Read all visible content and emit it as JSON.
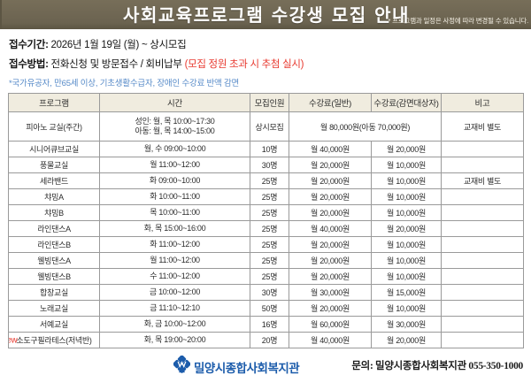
{
  "banner": {
    "title": "사회교육프로그램 수강생 모집 안내",
    "note": "* 프로그램과 일정은 사정에 따라 변경될 수 있습니다."
  },
  "info": {
    "period_label": "접수기간:",
    "period_value": " 2026년 1월 19일 (월) ~ 상시모집",
    "method_label": "접수방법:",
    "method_value": " 전화신청 및 방문접수 / 회비납부 ",
    "method_warning": "(모집 정원 초과 시 추첨 실시)",
    "discount_note": "*국가유공자, 만65세 이상, 기초생활수급자, 장애인 수강료 반액 감면"
  },
  "table": {
    "headers": [
      "프로그램",
      "시간",
      "모집인원",
      "수강료(일반)",
      "수강료(감면대상자)",
      "비고"
    ],
    "rows": [
      {
        "program": "피아노 교실(주간)",
        "time": [
          "성인: 월, 목 10:00~17:30",
          "아동: 월, 목 14:00~15:00"
        ],
        "capacity": "상시모집",
        "fee_combined": "월 80,000원(아동 70,000원)",
        "note": "교재비 별도",
        "tall": true
      },
      {
        "program": "시니어큐브교실",
        "time": [
          "월, 수 09:00~10:00"
        ],
        "capacity": "10명",
        "fee_general": "월 40,000원",
        "fee_discount": "월 20,000원",
        "note": ""
      },
      {
        "program": "풍물교실",
        "time": [
          "월 11:00~12:00"
        ],
        "capacity": "30명",
        "fee_general": "월 20,000원",
        "fee_discount": "월 10,000원",
        "note": ""
      },
      {
        "program": "세라밴드",
        "time": [
          "화 09:00~10:00"
        ],
        "capacity": "25명",
        "fee_general": "월 20,000원",
        "fee_discount": "월 10,000원",
        "note": "교재비 별도"
      },
      {
        "program": "챠밍A",
        "time": [
          "화 10:00~11:00"
        ],
        "capacity": "25명",
        "fee_general": "월 20,000원",
        "fee_discount": "월 10,000원",
        "note": ""
      },
      {
        "program": "챠밍B",
        "time": [
          "목 10:00~11:00"
        ],
        "capacity": "25명",
        "fee_general": "월 20,000원",
        "fee_discount": "월 10,000원",
        "note": ""
      },
      {
        "program": "라인댄스A",
        "time": [
          "화, 목 15:00~16:00"
        ],
        "capacity": "25명",
        "fee_general": "월 40,000원",
        "fee_discount": "월 20,000원",
        "note": ""
      },
      {
        "program": "라인댄스B",
        "time": [
          "화 11:00~12:00"
        ],
        "capacity": "25명",
        "fee_general": "월 20,000원",
        "fee_discount": "월 10,000원",
        "note": ""
      },
      {
        "program": "웰빙댄스A",
        "time": [
          "월 11:00~12:00"
        ],
        "capacity": "25명",
        "fee_general": "월 20,000원",
        "fee_discount": "월 10,000원",
        "note": ""
      },
      {
        "program": "웰빙댄스B",
        "time": [
          "수 11:00~12:00"
        ],
        "capacity": "25명",
        "fee_general": "월 20,000원",
        "fee_discount": "월 10,000원",
        "note": ""
      },
      {
        "program": "합창교실",
        "time": [
          "금 10:00~12:00"
        ],
        "capacity": "30명",
        "fee_general": "월 30,000원",
        "fee_discount": "월 15,000원",
        "note": ""
      },
      {
        "program": "노래교실",
        "time": [
          "금 11:10~12:10"
        ],
        "capacity": "50명",
        "fee_general": "월 20,000원",
        "fee_discount": "월 10,000원",
        "note": ""
      },
      {
        "program": "서예교실",
        "time": [
          "화, 금 10:00~12:00"
        ],
        "capacity": "16명",
        "fee_general": "월 60,000원",
        "fee_discount": "월 30,000원",
        "note": ""
      },
      {
        "program": "소도구필라테스(저녁반)",
        "time": [
          "화, 목 19:00~20:00"
        ],
        "capacity": "20명",
        "fee_general": "월 40,000원",
        "fee_discount": "월 20,000원",
        "note": "",
        "badge": "new"
      }
    ]
  },
  "footer": {
    "org_name": "밀양시종합사회복지관",
    "contact": "문의: 밀양시종합사회복지관 055-350-1000"
  },
  "colors": {
    "banner_bg": "#6b6350",
    "accent_red": "#e8392f",
    "note_blue": "#568ac8",
    "brand_blue": "#1c5cab",
    "table_header_bg": "#f0ecdf",
    "border_gray": "#9a9a9a"
  }
}
